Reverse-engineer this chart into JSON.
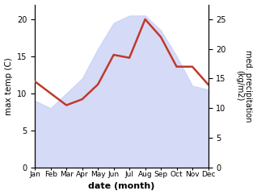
{
  "months": [
    "Jan",
    "Feb",
    "Mar",
    "Apr",
    "May",
    "Jun",
    "Jul",
    "Aug",
    "Sep",
    "Oct",
    "Nov",
    "Dec"
  ],
  "max_temp": [
    9.0,
    8.0,
    10.0,
    12.0,
    16.0,
    19.5,
    20.5,
    20.5,
    18.5,
    15.0,
    11.0,
    10.5
  ],
  "med_precip": [
    14.5,
    12.5,
    10.5,
    11.5,
    14.0,
    19.0,
    18.5,
    25.0,
    22.0,
    17.0,
    17.0,
    14.0
  ],
  "precip_color": "#c0392b",
  "fill_color": "#c8d0f5",
  "fill_alpha": 0.75,
  "left_ylabel": "max temp (C)",
  "right_ylabel": "med. precipitation\n(kg/m2)",
  "xlabel": "date (month)",
  "ylim_temp": [
    0,
    22
  ],
  "ylim_precip": [
    0,
    27.5
  ],
  "yticks_temp": [
    0,
    5,
    10,
    15,
    20
  ],
  "yticks_precip": [
    0,
    5,
    10,
    15,
    20,
    25
  ]
}
